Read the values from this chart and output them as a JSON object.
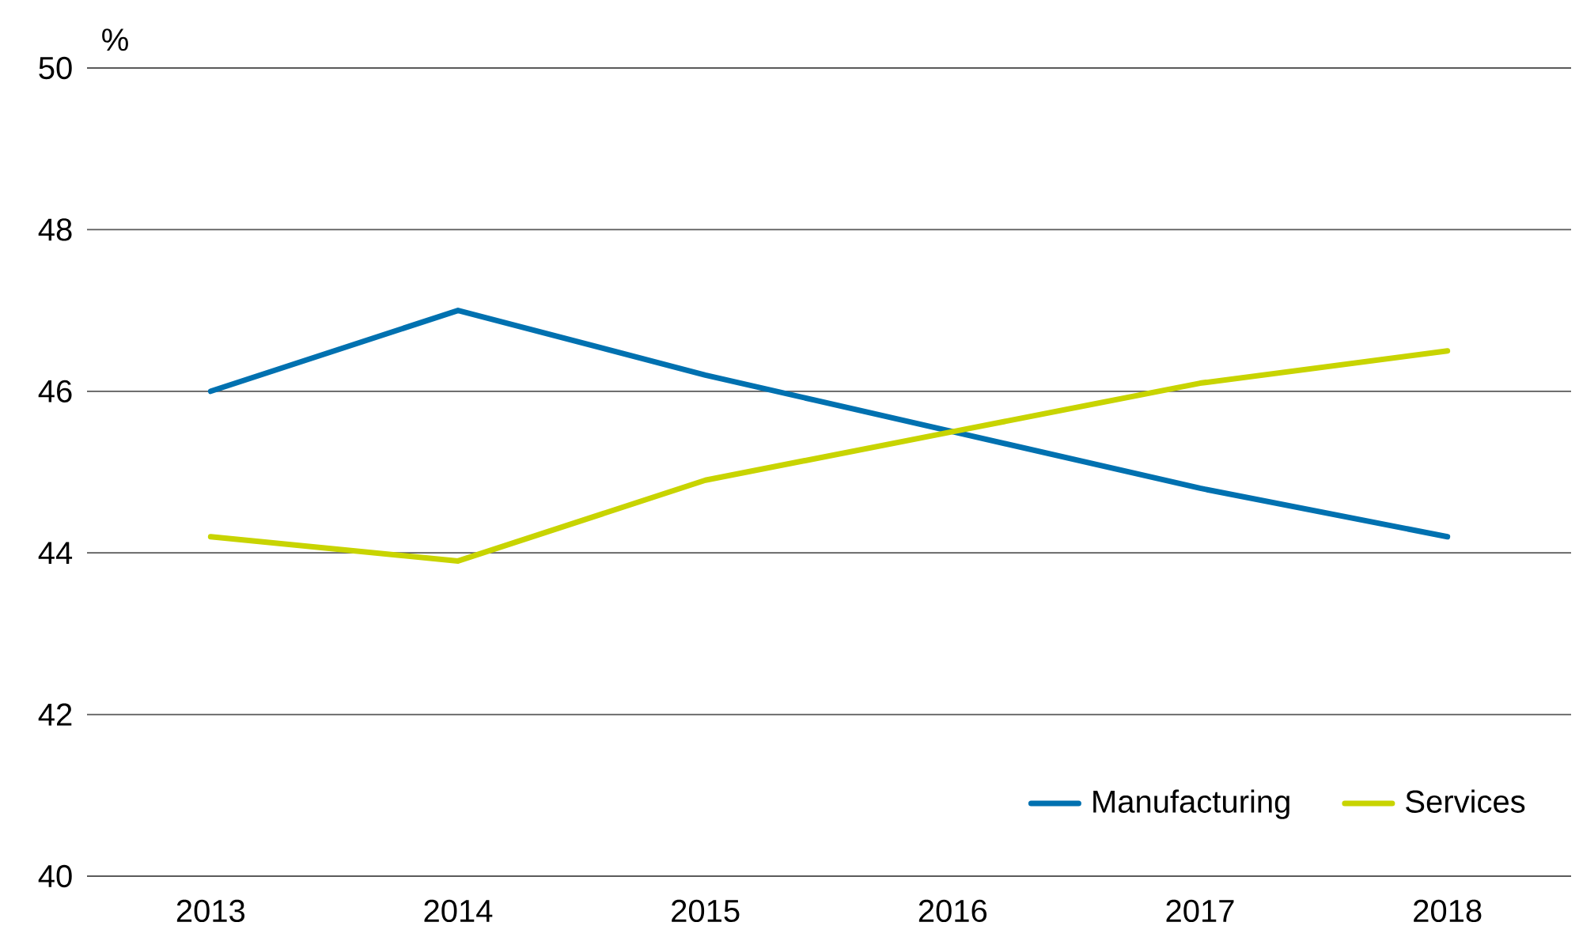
{
  "chart_data": {
    "type": "line",
    "ylabel": "%",
    "categories": [
      "2013",
      "2014",
      "2015",
      "2016",
      "2017",
      "2018"
    ],
    "series": [
      {
        "name": "Manufacturing",
        "color": "#0071b0",
        "values": [
          46.0,
          47.0,
          46.2,
          45.5,
          44.8,
          44.2
        ]
      },
      {
        "name": "Services",
        "color": "#c8d400",
        "values": [
          44.2,
          43.9,
          44.9,
          45.5,
          46.1,
          46.5
        ]
      }
    ],
    "ylim": [
      40,
      50
    ],
    "yticks": [
      40,
      42,
      44,
      46,
      48,
      50
    ],
    "grid": "y",
    "legend": "bottom right",
    "marker": "none",
    "line_style": "solid"
  }
}
